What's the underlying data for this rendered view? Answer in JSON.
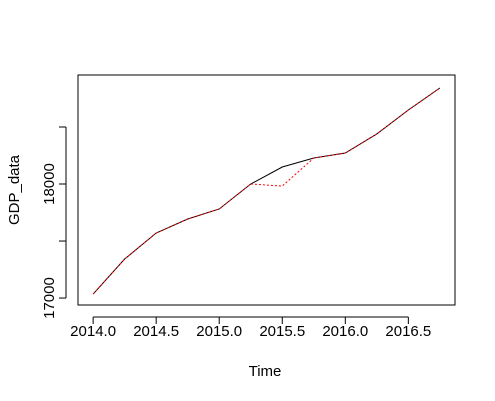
{
  "chart_data": {
    "type": "line",
    "xlabel": "Time",
    "ylabel": "GDP_data",
    "x": [
      2014.0,
      2014.25,
      2014.5,
      2014.75,
      2015.0,
      2015.25,
      2015.5,
      2015.75,
      2016.0,
      2016.25,
      2016.5,
      2016.75
    ],
    "series": [
      {
        "color": "#000000",
        "values": [
          17035,
          17342,
          17570,
          17693,
          17781,
          18000,
          18149,
          18228,
          18272,
          18439,
          18649,
          18842
        ]
      },
      {
        "color": "#ff0000",
        "dashed": true,
        "values": [
          17035,
          17342,
          17570,
          17693,
          17781,
          18000,
          17982,
          18228,
          18272,
          18439,
          18649,
          18842
        ]
      }
    ],
    "xlim": [
      2013.88,
      2016.87
    ],
    "ylim": [
      16939,
      18956
    ],
    "xticks": [
      {
        "value": 2014,
        "label": "2014.0"
      },
      {
        "value": 2014.5,
        "label": "2014.5"
      },
      {
        "value": 2015,
        "label": "2015.0"
      },
      {
        "value": 2015.5,
        "label": "2015.5"
      },
      {
        "value": 2016,
        "label": "2016.0"
      },
      {
        "value": 2016.5,
        "label": "2016.5"
      }
    ],
    "yticks": [
      17000,
      {
        "value": 17500,
        "label": null
      },
      18000,
      {
        "value": 18500,
        "label": null
      }
    ]
  }
}
